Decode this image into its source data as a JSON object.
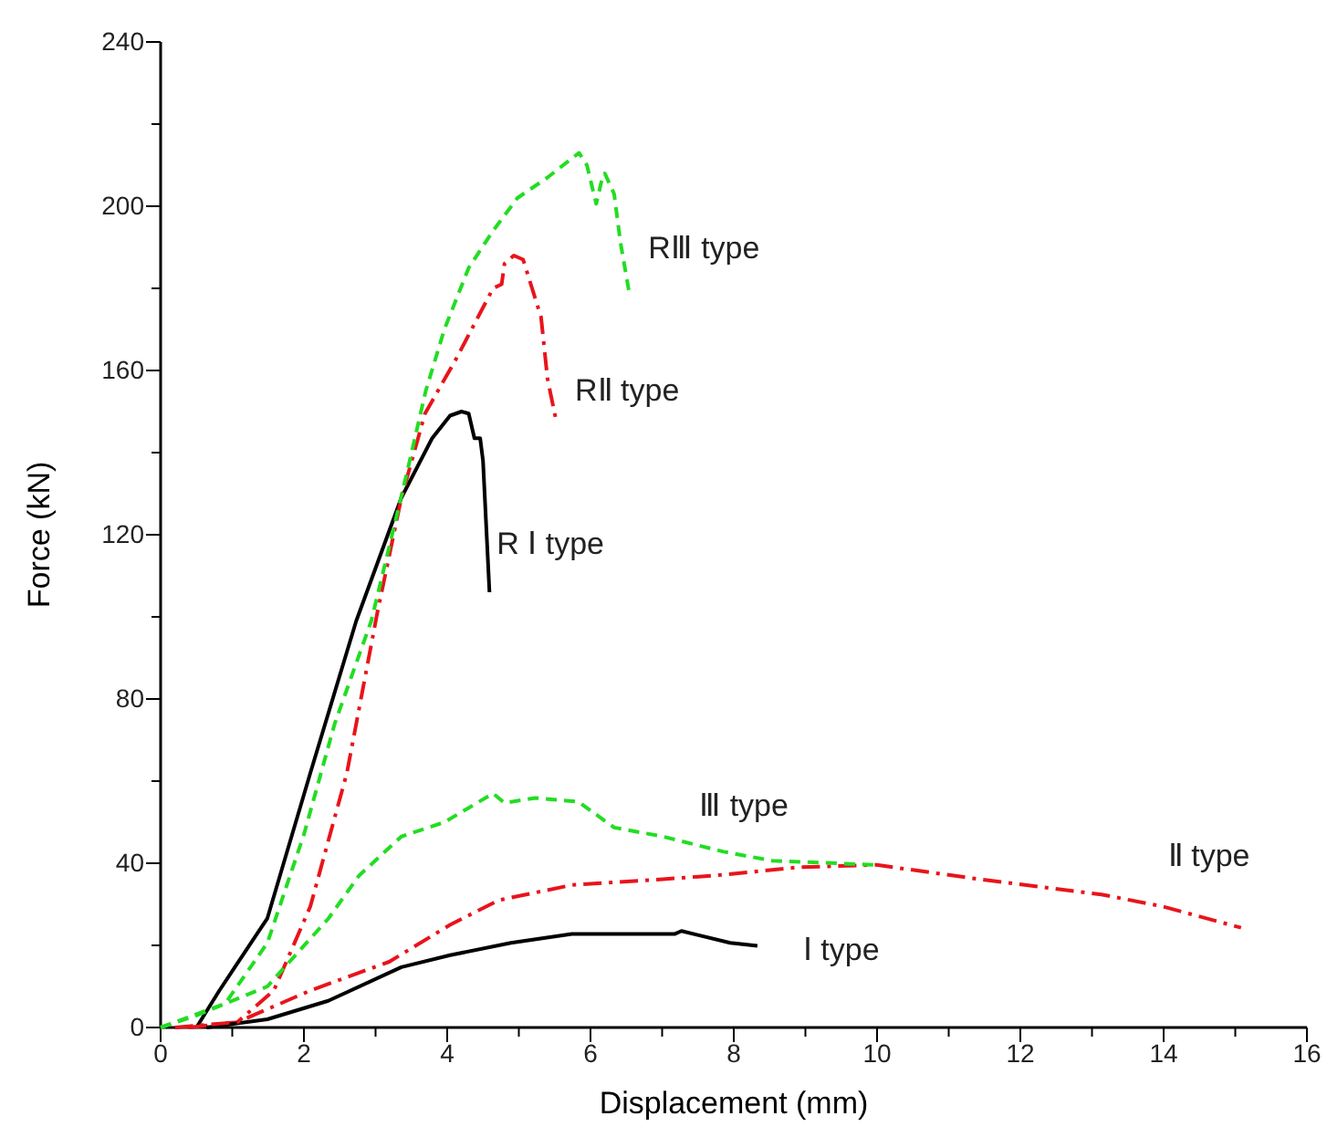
{
  "chart_data": {
    "type": "line",
    "xlabel": "Displacement  (mm)",
    "ylabel": "Force  (kN)",
    "xlim": [
      0,
      16
    ],
    "ylim": [
      0,
      240
    ],
    "xticks": [
      0,
      {
        "value": 1,
        "label": null
      },
      2,
      {
        "value": 3,
        "label": null
      },
      4,
      {
        "value": 5,
        "label": null
      },
      6,
      {
        "value": 7,
        "label": null
      },
      8,
      {
        "value": 9,
        "label": null
      },
      10,
      {
        "value": 11,
        "label": null
      },
      12,
      {
        "value": 13,
        "label": null
      },
      14,
      {
        "value": 15,
        "label": null
      },
      16
    ],
    "yticks": [
      0,
      {
        "value": 20,
        "label": null
      },
      40,
      {
        "value": 60,
        "label": null
      },
      80,
      {
        "value": 100,
        "label": null
      },
      120,
      {
        "value": 140,
        "label": null
      },
      160,
      {
        "value": 180,
        "label": null
      },
      200,
      {
        "value": 220,
        "label": null
      },
      240
    ],
    "grid": false,
    "legend": false,
    "marker": "none",
    "series": [
      {
        "name": "R Ⅰ type",
        "color": "#000000",
        "line_style": "solid",
        "x": [
          0.5,
          0.82,
          1.49,
          2.09,
          2.73,
          3.36,
          3.79,
          4.04,
          4.2,
          4.3,
          4.38,
          4.46,
          4.5,
          4.59
        ],
        "values": [
          0,
          9,
          26.6,
          62,
          99,
          129,
          143.5,
          149,
          150,
          149.5,
          143.5,
          143.5,
          138,
          106
        ]
      },
      {
        "name": "RⅡ type",
        "color": "#e8141b",
        "line_style": "dashdot",
        "x": [
          0.4,
          1.07,
          1.58,
          2.09,
          2.6,
          3.02,
          3.36,
          3.69,
          4.13,
          4.64,
          4.76,
          4.8,
          4.93,
          5.06,
          5.31,
          5.4,
          5.53
        ],
        "values": [
          0,
          1.3,
          9,
          29.5,
          62,
          100.6,
          129,
          149.5,
          163,
          180,
          181,
          186,
          188,
          187,
          173,
          158,
          147
        ]
      },
      {
        "name": "RⅢ type",
        "color": "#22dd22",
        "line_style": "dashed",
        "x": [
          0,
          0.9,
          1.49,
          2,
          2.43,
          2.94,
          3.19,
          3.45,
          3.7,
          3.96,
          4.3,
          4.64,
          4.98,
          5.4,
          5.84,
          5.95,
          6.08,
          6.15,
          6.2,
          6.33,
          6.42,
          6.55
        ],
        "values": [
          0,
          5.8,
          20.6,
          47,
          74,
          99,
          117,
          136,
          155,
          170,
          185,
          194,
          202,
          207,
          213,
          210,
          200.6,
          205.8,
          208,
          203,
          191,
          178
        ]
      },
      {
        "name": "Ⅰ type",
        "color": "#000000",
        "line_style": "solid",
        "x": [
          0.64,
          1.49,
          2.34,
          3.36,
          4.04,
          4.89,
          5.74,
          7.18,
          7.27,
          7.95,
          8.33
        ],
        "values": [
          0,
          2,
          6.5,
          14.7,
          17.6,
          20.6,
          22.8,
          22.8,
          23.5,
          20.6,
          19.9
        ]
      },
      {
        "name": "Ⅱ type",
        "color": "#e8141b",
        "line_style": "dashdot",
        "x": [
          0.2,
          1.07,
          2.09,
          3.19,
          4.04,
          4.72,
          5.74,
          7.01,
          7.86,
          8.88,
          9.99,
          11.43,
          13.13,
          13.98,
          15.08
        ],
        "values": [
          0,
          1.3,
          9,
          16,
          25,
          31,
          34.7,
          36.1,
          37.2,
          39,
          39.6,
          36.1,
          32.4,
          29.5,
          24.3
        ]
      },
      {
        "name": "Ⅲ type",
        "color": "#22dd22",
        "line_style": "dashed",
        "x": [
          0,
          0.48,
          1.49,
          2.34,
          2.77,
          3.36,
          3.96,
          4.64,
          4.8,
          5.23,
          5.83,
          6.33,
          7.01,
          7.86,
          8.54,
          9.99
        ],
        "values": [
          0,
          2.8,
          10,
          26.5,
          37,
          46.5,
          50,
          57,
          54.7,
          55.9,
          55,
          48.7,
          46.5,
          42.8,
          40.6,
          39.6
        ]
      }
    ]
  }
}
